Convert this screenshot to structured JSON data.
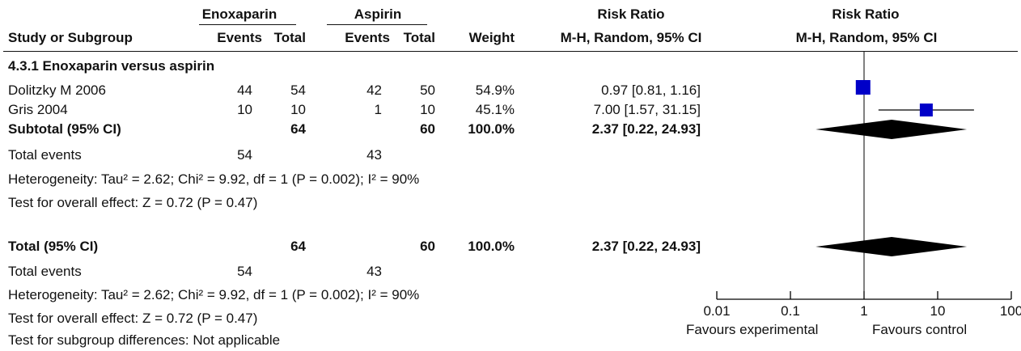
{
  "header": {
    "group1_name": "Enoxaparin",
    "group2_name": "Aspirin",
    "rr_col_title": "Risk Ratio",
    "plot_col_title": "Risk Ratio",
    "study_col": "Study or Subgroup",
    "events1": "Events",
    "total1": "Total",
    "events2": "Events",
    "total2": "Total",
    "weight": "Weight",
    "rr_method": "M-H, Random, 95% CI",
    "plot_method": "M-H, Random, 95% CI"
  },
  "subgroup": {
    "title": "4.3.1 Enoxaparin versus aspirin",
    "rows": [
      {
        "study": "Dolitzky M 2006",
        "e1": "44",
        "t1": "54",
        "e2": "42",
        "t2": "50",
        "weight": "54.9%",
        "ci": "0.97 [0.81, 1.16]"
      },
      {
        "study": "Gris 2004",
        "e1": "10",
        "t1": "10",
        "e2": "1",
        "t2": "10",
        "weight": "45.1%",
        "ci": "7.00 [1.57, 31.15]"
      }
    ],
    "subtotal": {
      "label": "Subtotal (95% CI)",
      "t1": "64",
      "t2": "60",
      "weight": "100.0%",
      "ci": "2.37 [0.22, 24.93]"
    },
    "total_events": {
      "label": "Total events",
      "e1": "54",
      "e2": "43"
    },
    "heterogeneity": "Heterogeneity: Tau² = 2.62; Chi² = 9.92, df = 1 (P = 0.002); I² = 90%",
    "overall_effect": "Test for overall effect: Z = 0.72 (P = 0.47)"
  },
  "total": {
    "label": "Total (95% CI)",
    "t1": "64",
    "t2": "60",
    "weight": "100.0%",
    "ci": "2.37 [0.22, 24.93]",
    "total_events": {
      "label": "Total events",
      "e1": "54",
      "e2": "43"
    },
    "heterogeneity": "Heterogeneity: Tau² = 2.62; Chi² = 9.92, df = 1 (P = 0.002); I² = 90%",
    "overall_effect": "Test for overall effect: Z = 0.72 (P = 0.47)",
    "subgroup_diff": "Test for subgroup differences: Not applicable"
  },
  "chart_data": {
    "type": "forest",
    "x_scale": "log",
    "xlim": [
      0.01,
      100
    ],
    "ticks": [
      0.01,
      0.1,
      1,
      10,
      100
    ],
    "tick_labels": [
      "0.01",
      "0.1",
      "1",
      "10",
      "100"
    ],
    "null_line": 1,
    "favours_left": "Favours experimental",
    "favours_right": "Favours control",
    "studies": [
      {
        "name": "Dolitzky M 2006",
        "rr": 0.97,
        "lo": 0.81,
        "hi": 1.16,
        "weight": 54.9
      },
      {
        "name": "Gris 2004",
        "rr": 7.0,
        "lo": 1.57,
        "hi": 31.15,
        "weight": 45.1
      }
    ],
    "pooled": [
      {
        "name": "Subtotal (95% CI)",
        "rr": 2.37,
        "lo": 0.22,
        "hi": 24.93
      },
      {
        "name": "Total (95% CI)",
        "rr": 2.37,
        "lo": 0.22,
        "hi": 24.93
      }
    ],
    "colors": {
      "marker": "#0000c8",
      "diamond": "#000000",
      "line": "#000000"
    }
  }
}
